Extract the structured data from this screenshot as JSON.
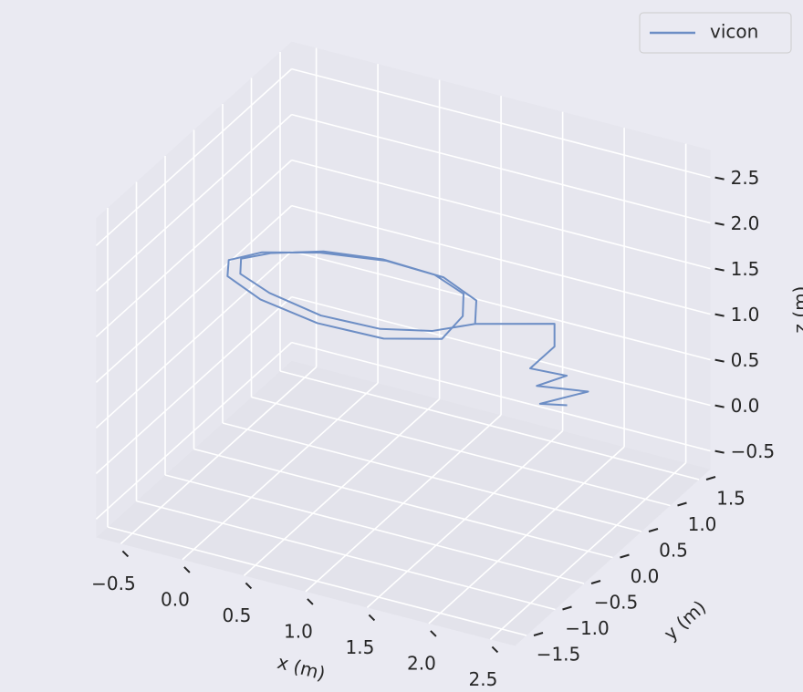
{
  "chart_data": {
    "type": "line3d",
    "xlabel": "x (m)",
    "ylabel": "y (m)",
    "zlabel": "z (m)",
    "xlim": [
      -0.7,
      2.7
    ],
    "ylim": [
      -1.7,
      1.7
    ],
    "zlim": [
      -0.7,
      2.8
    ],
    "xticks": [
      {
        "value": -0.5,
        "label": "−0.5"
      },
      {
        "value": 0,
        "label": "0.0"
      },
      0.5,
      {
        "value": 1,
        "label": "1.0"
      },
      1.5,
      {
        "value": 2,
        "label": "2.0"
      },
      2.5
    ],
    "yticks": [
      {
        "value": -1.5,
        "label": "−1.5"
      },
      {
        "value": -1,
        "label": "−1.0"
      },
      {
        "value": -0.5,
        "label": "−0.5"
      },
      {
        "value": 0,
        "label": "0.0"
      },
      0.5,
      {
        "value": 1,
        "label": "1.0"
      },
      1.5
    ],
    "zticks": [
      {
        "value": -0.5,
        "label": "−0.5"
      },
      {
        "value": 0,
        "label": "0.0"
      },
      0.5,
      {
        "value": 1,
        "label": "1.0"
      },
      1.5,
      {
        "value": 2,
        "label": "2.0"
      },
      2.5
    ],
    "grid": true,
    "legend": "upper right",
    "series": [
      {
        "name": "vicon",
        "color": "#6d8ec5",
        "x": [
          1.41,
          1.28,
          0.91,
          0.41,
          -0.09,
          -0.46,
          -0.59,
          -0.46,
          -0.09,
          0.41,
          0.91,
          1.28,
          1.31,
          1.19,
          0.86,
          0.41,
          -0.04,
          -0.37,
          -0.49,
          -0.37,
          -0.04,
          0.41,
          0.86,
          1.19,
          1.41,
          1.91,
          1.91,
          1.75,
          2.0,
          1.85,
          2.15,
          1.9,
          2.05
        ],
        "y": [
          0.37,
          0.67,
          0.89,
          0.97,
          0.89,
          0.67,
          0.37,
          0.07,
          -0.15,
          -0.23,
          -0.15,
          0.07,
          0.37,
          0.64,
          0.84,
          0.91,
          0.84,
          0.64,
          0.37,
          0.1,
          -0.1,
          -0.17,
          -0.1,
          0.1,
          0.37,
          0.68,
          0.68,
          0.6,
          0.7,
          0.5,
          0.75,
          0.45,
          0.6
        ],
        "z": [
          1.2,
          1.24,
          1.24,
          1.2,
          1.16,
          1.16,
          1.2,
          1.24,
          1.24,
          1.2,
          1.16,
          1.16,
          1.25,
          1.3,
          1.28,
          1.25,
          1.22,
          1.2,
          1.25,
          1.28,
          1.3,
          1.25,
          1.22,
          1.2,
          1.2,
          1.2,
          0.95,
          0.7,
          0.65,
          0.6,
          0.5,
          0.45,
          0.4
        ]
      }
    ]
  }
}
